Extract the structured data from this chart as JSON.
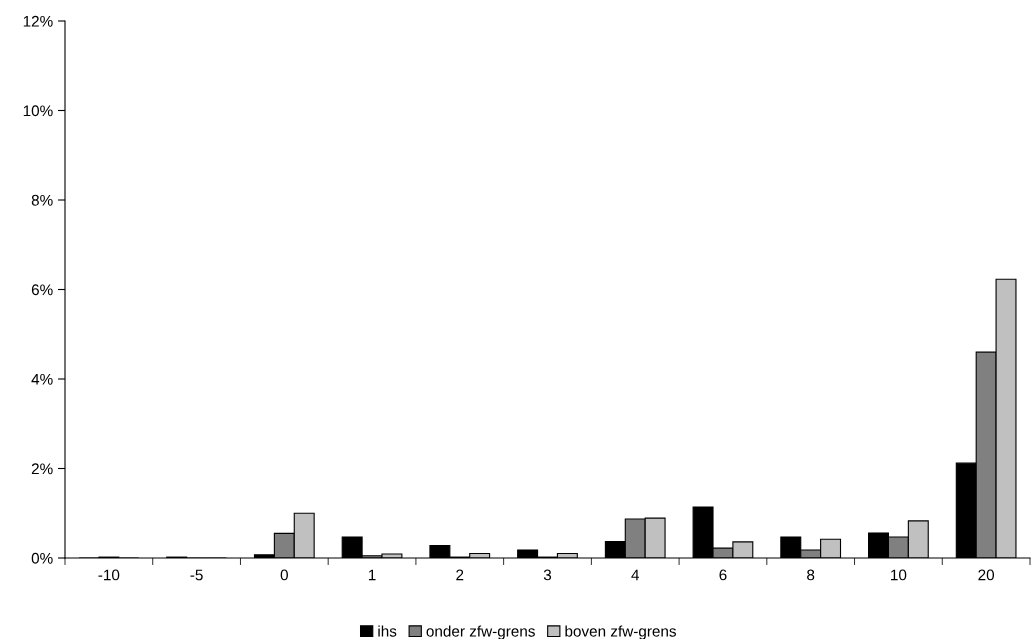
{
  "chart_data": {
    "type": "bar",
    "categories": [
      "-10",
      "-5",
      "0",
      "1",
      "2",
      "3",
      "4",
      "6",
      "8",
      "10",
      "20"
    ],
    "series": [
      {
        "name": "ihs",
        "color": "#000000",
        "values": [
          0,
          0.02,
          0.07,
          0.47,
          0.28,
          0.18,
          0.37,
          1.14,
          0.47,
          0.56,
          2.12
        ]
      },
      {
        "name": "onder zfw-grens",
        "color": "#808080",
        "values": [
          0.02,
          0,
          0.55,
          0.05,
          0.02,
          0.02,
          0.87,
          0.22,
          0.18,
          0.47,
          4.6
        ]
      },
      {
        "name": "boven zfw-grens",
        "color": "#c0c0c0",
        "values": [
          0,
          0,
          1.0,
          0.09,
          0.1,
          0.1,
          0.89,
          0.36,
          0.42,
          0.83,
          6.23
        ]
      }
    ],
    "ylim": [
      0,
      12
    ],
    "yticks": [
      {
        "value": 0,
        "label": "0%"
      },
      {
        "value": 2,
        "label": "2%"
      },
      {
        "value": 4,
        "label": "4%"
      },
      {
        "value": 6,
        "label": "6%"
      },
      {
        "value": 8,
        "label": "8%"
      },
      {
        "value": 10,
        "label": "10%"
      },
      {
        "value": 12,
        "label": "12%"
      }
    ],
    "grid": false,
    "legend": "bottom"
  }
}
